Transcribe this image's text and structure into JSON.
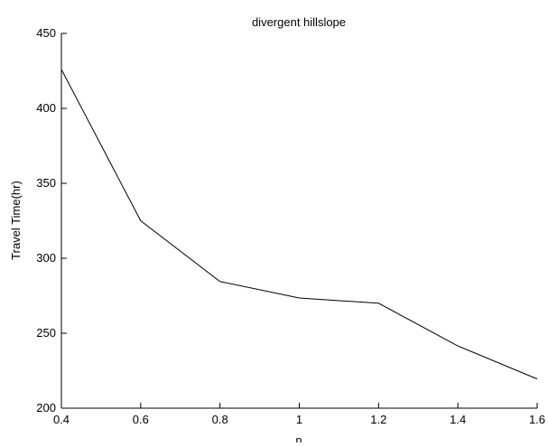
{
  "chart_data": {
    "type": "line",
    "title": "divergent hillslope",
    "xlabel": "n",
    "ylabel": "Travel Time(hr)",
    "x": [
      0.4,
      0.6,
      0.8,
      1.0,
      1.2,
      1.4,
      1.6
    ],
    "series": [
      {
        "values": [
          426,
          325,
          284.5,
          273.5,
          270,
          241.5,
          219.5
        ]
      }
    ],
    "xlim": [
      0.4,
      1.6
    ],
    "ylim": [
      200,
      450
    ],
    "xticks": [
      0.4,
      0.6,
      0.8,
      1.0,
      1.2,
      1.4,
      1.6
    ],
    "xtick_labels": [
      "0.4",
      "0.6",
      "0.8",
      "1",
      "1.2",
      "1.4",
      "1.6"
    ],
    "yticks": [
      200,
      250,
      300,
      350,
      400,
      450
    ],
    "ytick_labels": [
      "200",
      "250",
      "300",
      "350",
      "400",
      "450"
    ],
    "grid": false,
    "colors": {
      "line": "#000000",
      "axis": "#000000",
      "background": "#ffffff"
    }
  }
}
